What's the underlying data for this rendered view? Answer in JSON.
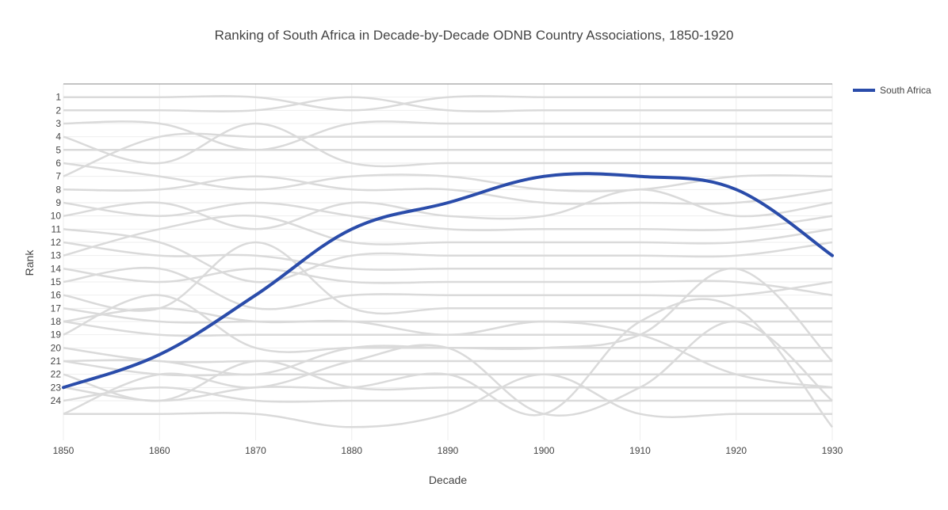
{
  "chart_data": {
    "type": "line",
    "title": "Ranking of South Africa in Decade-by-Decade ODNB Country Associations, 1850-1920",
    "xlabel": "Decade",
    "ylabel": "Rank",
    "x_ticks": [
      1850,
      1860,
      1870,
      1880,
      1890,
      1900,
      1910,
      1920,
      1930
    ],
    "y_ticks": [
      1,
      2,
      3,
      4,
      5,
      6,
      7,
      8,
      9,
      10,
      11,
      12,
      13,
      14,
      15,
      16,
      17,
      18,
      19,
      20,
      21,
      22,
      23,
      24
    ],
    "xlim": [
      1850,
      1930
    ],
    "ylim": [
      27,
      0
    ],
    "grid": true,
    "legend": {
      "placement": "top-right",
      "entries": [
        "South Africa"
      ]
    },
    "colors": {
      "highlight": "#2a4caa",
      "background_series": "#dadada",
      "grid": "#eeeeee",
      "axis_line": "#888888"
    },
    "x": [
      1850,
      1860,
      1870,
      1880,
      1890,
      1900,
      1910,
      1920,
      1930
    ],
    "series": [
      {
        "name": "South Africa",
        "highlight": true,
        "values": [
          23,
          20.5,
          16,
          11,
          9,
          7,
          7,
          8,
          13
        ]
      },
      {
        "highlight": false,
        "values": [
          1,
          1,
          1,
          2,
          1,
          1,
          1,
          1,
          1
        ]
      },
      {
        "highlight": false,
        "values": [
          2,
          2,
          2,
          1,
          2,
          2,
          2,
          2,
          2
        ]
      },
      {
        "highlight": false,
        "values": [
          3,
          3,
          5,
          3,
          3,
          3,
          3,
          3,
          3
        ]
      },
      {
        "highlight": false,
        "values": [
          7,
          4,
          4,
          4,
          4,
          4,
          4,
          4,
          4
        ]
      },
      {
        "highlight": false,
        "values": [
          5,
          5,
          5,
          5,
          5,
          5,
          5,
          5,
          5
        ]
      },
      {
        "highlight": false,
        "values": [
          4,
          6,
          3,
          6,
          6,
          6,
          6,
          6,
          6
        ]
      },
      {
        "highlight": false,
        "values": [
          6,
          7,
          8,
          7,
          7,
          8,
          8,
          7,
          7
        ]
      },
      {
        "highlight": false,
        "values": [
          8,
          8,
          7,
          8,
          8,
          9,
          9,
          9,
          8
        ]
      },
      {
        "highlight": false,
        "values": [
          10,
          9,
          11,
          9,
          10,
          10,
          8,
          10,
          9
        ]
      },
      {
        "highlight": false,
        "values": [
          9,
          10,
          9,
          10,
          11,
          11,
          11,
          11,
          10
        ]
      },
      {
        "highlight": false,
        "values": [
          13,
          11,
          10,
          12,
          12,
          12,
          12,
          12,
          11
        ]
      },
      {
        "highlight": false,
        "values": [
          11,
          12,
          15,
          13,
          13,
          13,
          13,
          13,
          12
        ]
      },
      {
        "highlight": false,
        "values": [
          12,
          13,
          13,
          14,
          14,
          14,
          14,
          14,
          14
        ]
      },
      {
        "highlight": false,
        "values": [
          14,
          15,
          14,
          15,
          15,
          15,
          15,
          15,
          16
        ]
      },
      {
        "highlight": false,
        "values": [
          15,
          14,
          17,
          16,
          16,
          16,
          16,
          16,
          15
        ]
      },
      {
        "highlight": false,
        "values": [
          16,
          17,
          12,
          17,
          17,
          17,
          17,
          17,
          17
        ]
      },
      {
        "highlight": false,
        "values": [
          17,
          18,
          18,
          18,
          18,
          18,
          18,
          18,
          18
        ]
      },
      {
        "highlight": false,
        "values": [
          18,
          19,
          19,
          19,
          19,
          19,
          19,
          19,
          19
        ]
      },
      {
        "highlight": false,
        "values": [
          19,
          16,
          20,
          20,
          20,
          20,
          20,
          20,
          20
        ]
      },
      {
        "highlight": false,
        "values": [
          20,
          21,
          21,
          21,
          21,
          21,
          21,
          21,
          21
        ]
      },
      {
        "highlight": false,
        "values": [
          21,
          22,
          22,
          22,
          22,
          22,
          22,
          22,
          22
        ]
      },
      {
        "highlight": false,
        "values": [
          22,
          24,
          21,
          23,
          23,
          23,
          23,
          23,
          23
        ]
      },
      {
        "highlight": false,
        "values": [
          24,
          23,
          24,
          24,
          24,
          24,
          24,
          24,
          24
        ]
      },
      {
        "highlight": false,
        "values": [
          25,
          25,
          25,
          26,
          25,
          22,
          25,
          25,
          25
        ]
      },
      {
        "highlight": false,
        "values": [
          23,
          24,
          23,
          23,
          22,
          25,
          18,
          17,
          26
        ]
      },
      {
        "highlight": false,
        "values": [
          25,
          22,
          23,
          21,
          20,
          25,
          23,
          18,
          24
        ]
      },
      {
        "highlight": false,
        "values": [
          21,
          21,
          22,
          20,
          20,
          20,
          19,
          14,
          21
        ]
      },
      {
        "highlight": false,
        "values": [
          18,
          17,
          18,
          18,
          19,
          18,
          19,
          22,
          23
        ]
      }
    ]
  }
}
